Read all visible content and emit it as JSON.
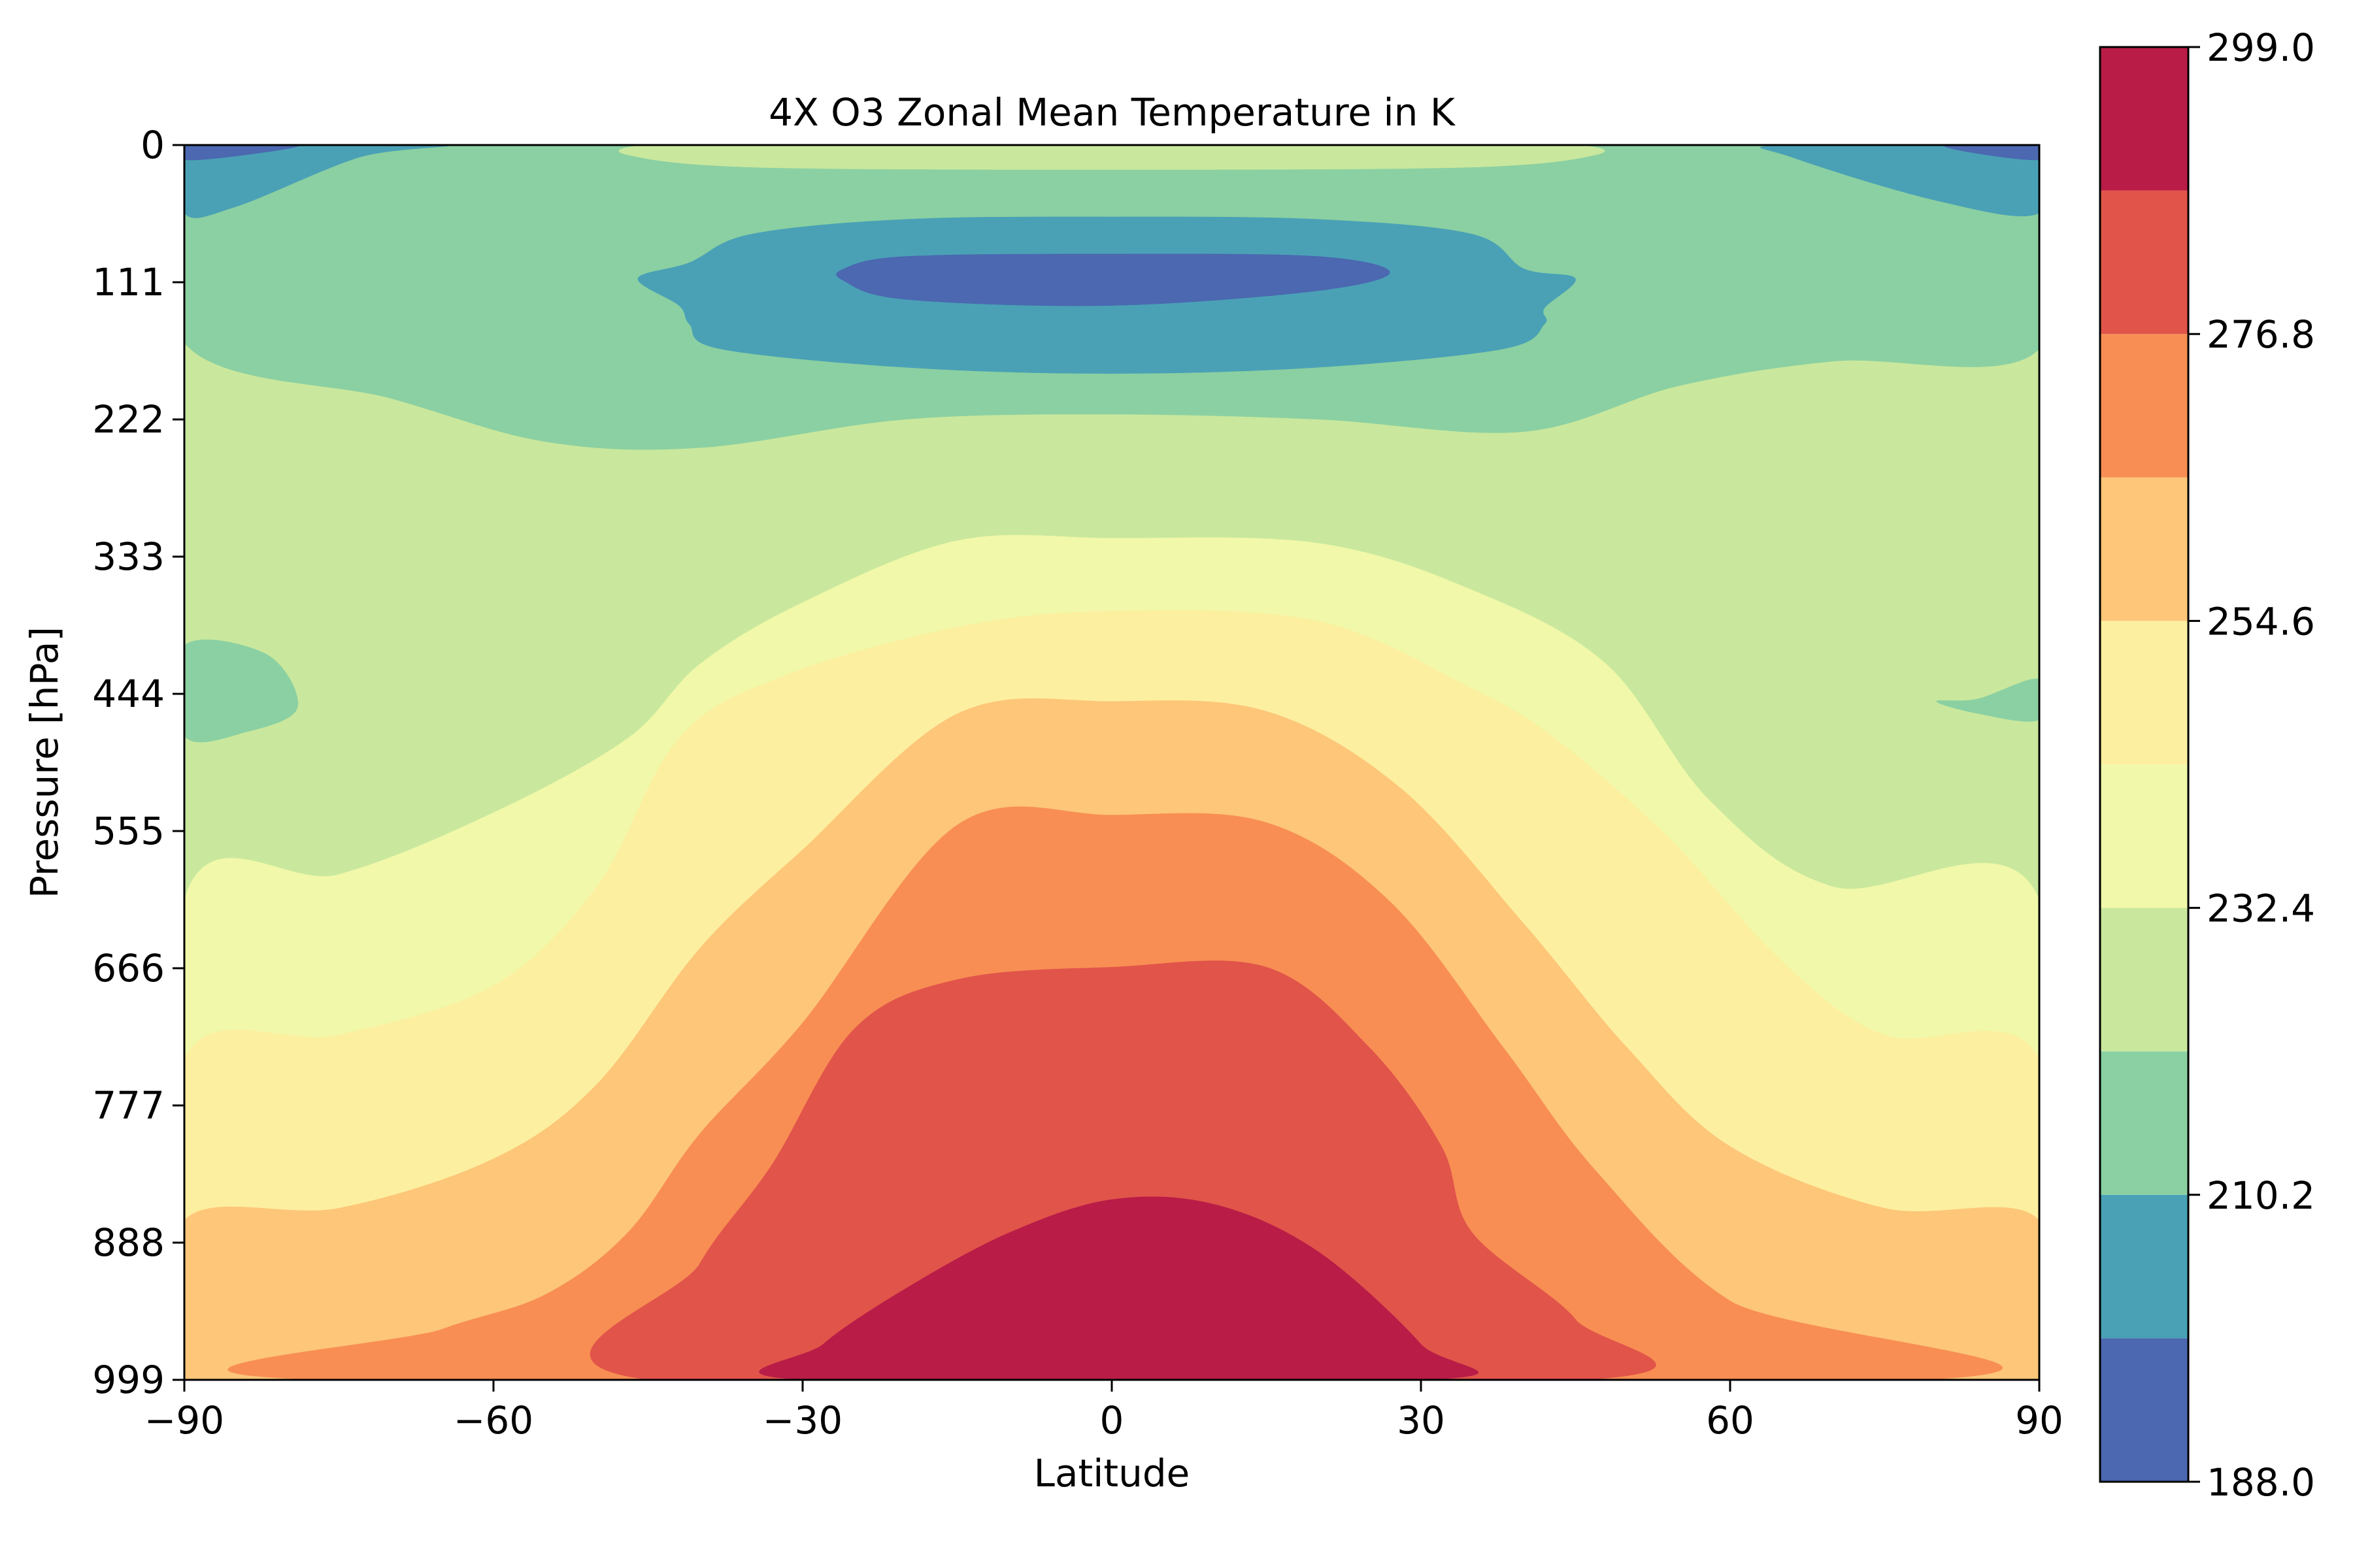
{
  "chart_data": {
    "type": "contourf",
    "title": "4X O3 Zonal Mean Temperature in K",
    "xlabel": "Latitude",
    "ylabel": "Pressure [hPa]",
    "xlim": [
      -90,
      90
    ],
    "ylim": [
      999,
      0
    ],
    "x_ticks": [
      "−90",
      "−60",
      "−30",
      "0",
      "30",
      "60",
      "90"
    ],
    "x_tick_values": [
      -90,
      -60,
      -30,
      0,
      30,
      60,
      90
    ],
    "y_ticks": [
      "0",
      "111",
      "222",
      "333",
      "444",
      "555",
      "666",
      "777",
      "888",
      "999"
    ],
    "y_tick_values": [
      0,
      111,
      222,
      333,
      444,
      555,
      666,
      777,
      888,
      999
    ],
    "colorbar": {
      "min": 188.0,
      "max": 299.0,
      "tick_labels": [
        "188.0",
        "210.2",
        "232.4",
        "254.6",
        "276.8",
        "299.0"
      ],
      "tick_values": [
        188.0,
        210.2,
        232.4,
        254.6,
        276.8,
        299.0
      ],
      "levels": [
        188.0,
        199.1,
        210.2,
        221.3,
        232.4,
        243.5,
        254.6,
        265.7,
        276.8,
        287.9,
        299.0
      ],
      "colors": [
        "#4b68b0",
        "#4aa1b6",
        "#8bd0a2",
        "#c9e89d",
        "#f1f8a9",
        "#fdefa0",
        "#fdc679",
        "#f88e53",
        "#e1544a",
        "#b91c47"
      ]
    },
    "regions": [
      {
        "level": 3,
        "pts": [
          [
            -90,
            0
          ],
          [
            90,
            0
          ],
          [
            90,
            999
          ],
          [
            -90,
            999
          ]
        ]
      },
      {
        "level": 2,
        "pts": [
          [
            -90,
            0
          ],
          [
            90,
            0
          ],
          [
            90,
            165
          ],
          [
            70,
            175
          ],
          [
            55,
            195
          ],
          [
            40,
            232
          ],
          [
            20,
            222
          ],
          [
            0,
            218
          ],
          [
            -20,
            222
          ],
          [
            -40,
            245
          ],
          [
            -55,
            240
          ],
          [
            -70,
            205
          ],
          [
            -90,
            160
          ]
        ]
      },
      {
        "level": 2,
        "pts": [
          [
            -90,
            405
          ],
          [
            -82,
            412
          ],
          [
            -79,
            455
          ],
          [
            -84,
            475
          ],
          [
            -90,
            478
          ]
        ]
      },
      {
        "level": 2,
        "pts": [
          [
            90,
            432
          ],
          [
            84,
            448
          ],
          [
            80,
            450
          ],
          [
            84,
            460
          ],
          [
            90,
            465
          ]
        ]
      },
      {
        "level": 3,
        "pts": [
          [
            -45,
            0
          ],
          [
            -30,
            0
          ],
          [
            0,
            0
          ],
          [
            30,
            0
          ],
          [
            45,
            0
          ],
          [
            47,
            8
          ],
          [
            35,
            18
          ],
          [
            0,
            20
          ],
          [
            -35,
            18
          ],
          [
            -47,
            8
          ]
        ]
      },
      {
        "level": 1,
        "pts": [
          [
            -90,
            0
          ],
          [
            -65,
            0
          ],
          [
            -73,
            10
          ],
          [
            -85,
            50
          ],
          [
            -90,
            55
          ]
        ]
      },
      {
        "level": 1,
        "pts": [
          [
            90,
            0
          ],
          [
            65,
            0
          ],
          [
            66,
            10
          ],
          [
            80,
            45
          ],
          [
            90,
            55
          ]
        ]
      },
      {
        "level": 0,
        "pts": [
          [
            -90,
            0
          ],
          [
            -79,
            0
          ],
          [
            -84,
            8
          ],
          [
            -90,
            12
          ]
        ]
      },
      {
        "level": 0,
        "pts": [
          [
            90,
            0
          ],
          [
            81,
            0
          ],
          [
            84,
            7
          ],
          [
            90,
            12
          ]
        ]
      },
      {
        "level": 1,
        "pts": [
          [
            -35,
            72
          ],
          [
            -20,
            60
          ],
          [
            0,
            58
          ],
          [
            20,
            60
          ],
          [
            35,
            72
          ],
          [
            40,
            100
          ],
          [
            45,
            108
          ],
          [
            42,
            132
          ],
          [
            42,
            145
          ],
          [
            38,
            165
          ],
          [
            20,
            180
          ],
          [
            0,
            185
          ],
          [
            -20,
            180
          ],
          [
            -38,
            165
          ],
          [
            -41,
            145
          ],
          [
            -42,
            130
          ],
          [
            -46,
            108
          ],
          [
            -41,
            95
          ]
        ]
      },
      {
        "level": 0,
        "pts": [
          [
            -26,
            100
          ],
          [
            -20,
            90
          ],
          [
            0,
            88
          ],
          [
            20,
            90
          ],
          [
            27,
            103
          ],
          [
            20,
            118
          ],
          [
            0,
            130
          ],
          [
            -20,
            125
          ],
          [
            -26,
            110
          ]
        ]
      },
      {
        "level": 4,
        "pts": [
          [
            -90,
            610
          ],
          [
            -75,
            590
          ],
          [
            -60,
            540
          ],
          [
            -47,
            480
          ],
          [
            -40,
            420
          ],
          [
            -30,
            370
          ],
          [
            -15,
            320
          ],
          [
            0,
            318
          ],
          [
            20,
            322
          ],
          [
            35,
            360
          ],
          [
            48,
            420
          ],
          [
            58,
            530
          ],
          [
            70,
            600
          ],
          [
            90,
            610
          ],
          [
            90,
            999
          ],
          [
            -90,
            999
          ]
        ]
      },
      {
        "level": 5,
        "pts": [
          [
            -90,
            740
          ],
          [
            -75,
            720
          ],
          [
            -60,
            680
          ],
          [
            -50,
            600
          ],
          [
            -42,
            480
          ],
          [
            -32,
            430
          ],
          [
            -15,
            390
          ],
          [
            0,
            377
          ],
          [
            20,
            385
          ],
          [
            35,
            440
          ],
          [
            43,
            480
          ],
          [
            54,
            560
          ],
          [
            65,
            660
          ],
          [
            75,
            720
          ],
          [
            90,
            740
          ],
          [
            90,
            999
          ],
          [
            -90,
            999
          ]
        ]
      },
      {
        "level": 6,
        "pts": [
          [
            -90,
            870
          ],
          [
            -75,
            860
          ],
          [
            -60,
            820
          ],
          [
            -50,
            760
          ],
          [
            -40,
            650
          ],
          [
            -30,
            570
          ],
          [
            -15,
            460
          ],
          [
            0,
            450
          ],
          [
            15,
            458
          ],
          [
            28,
            520
          ],
          [
            40,
            630
          ],
          [
            50,
            730
          ],
          [
            60,
            810
          ],
          [
            75,
            860
          ],
          [
            90,
            870
          ],
          [
            90,
            999
          ],
          [
            -90,
            999
          ]
        ]
      },
      {
        "level": 7,
        "pts": [
          [
            -77,
            999
          ],
          [
            -65,
            958
          ],
          [
            -55,
            930
          ],
          [
            -47,
            880
          ],
          [
            -40,
            800
          ],
          [
            -30,
            710
          ],
          [
            -15,
            550
          ],
          [
            0,
            542
          ],
          [
            15,
            548
          ],
          [
            27,
            612
          ],
          [
            38,
            730
          ],
          [
            47,
            830
          ],
          [
            60,
            935
          ],
          [
            79,
            999
          ]
        ]
      },
      {
        "level": 8,
        "pts": [
          [
            -45,
            999
          ],
          [
            -40,
            905
          ],
          [
            -33,
            825
          ],
          [
            -25,
            715
          ],
          [
            -15,
            675
          ],
          [
            0,
            665
          ],
          [
            15,
            665
          ],
          [
            25,
            730
          ],
          [
            32,
            810
          ],
          [
            35,
            880
          ],
          [
            45,
            950
          ],
          [
            46,
            999
          ]
        ]
      },
      {
        "level": 9,
        "pts": [
          [
            -30,
            999
          ],
          [
            -28,
            970
          ],
          [
            -20,
            925
          ],
          [
            -10,
            880
          ],
          [
            0,
            853
          ],
          [
            10,
            857
          ],
          [
            20,
            895
          ],
          [
            30,
            970
          ],
          [
            31,
            999
          ]
        ]
      }
    ]
  }
}
